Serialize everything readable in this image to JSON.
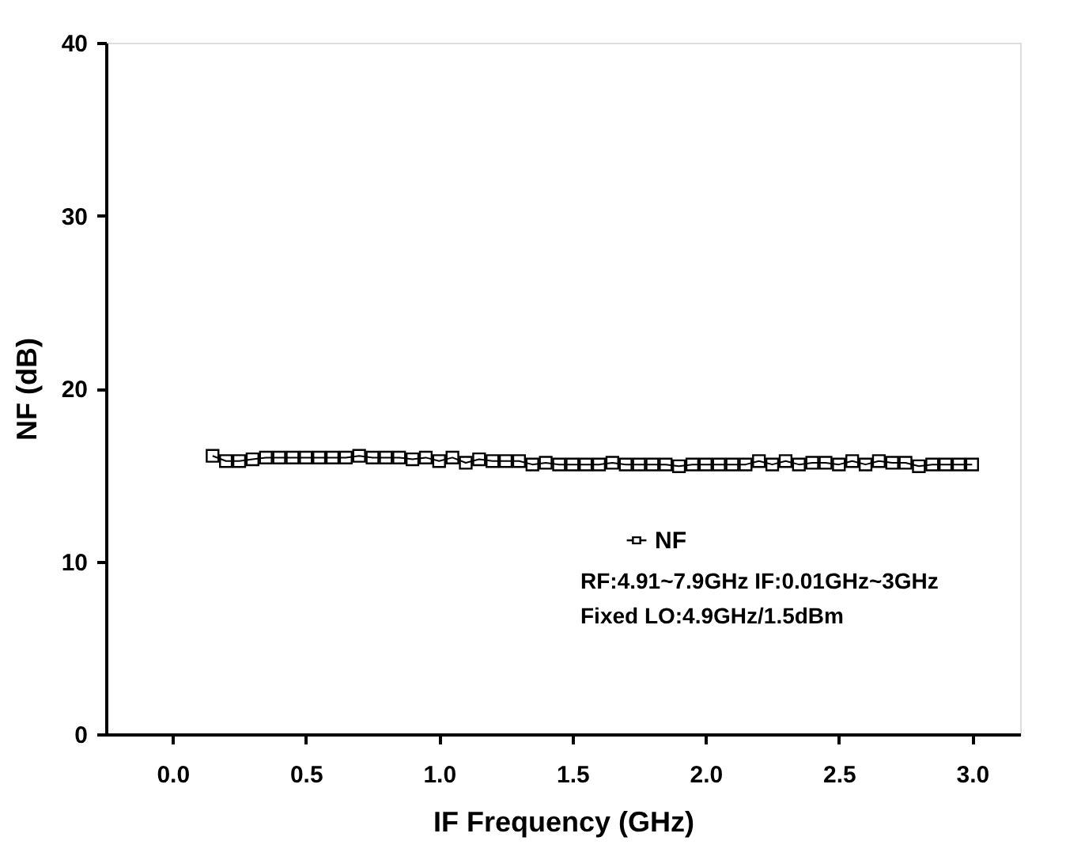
{
  "chart_data": {
    "type": "line",
    "xlabel": "IF Frequency (GHz)",
    "ylabel": "NF (dB)",
    "x": [
      0.15,
      0.2,
      0.25,
      0.3,
      0.35,
      0.4,
      0.45,
      0.5,
      0.55,
      0.6,
      0.65,
      0.7,
      0.75,
      0.8,
      0.85,
      0.9,
      0.95,
      1.0,
      1.05,
      1.1,
      1.15,
      1.2,
      1.25,
      1.3,
      1.35,
      1.4,
      1.45,
      1.5,
      1.55,
      1.6,
      1.65,
      1.7,
      1.75,
      1.8,
      1.85,
      1.9,
      1.95,
      2.0,
      2.05,
      2.1,
      2.15,
      2.2,
      2.25,
      2.3,
      2.35,
      2.4,
      2.45,
      2.5,
      2.55,
      2.6,
      2.65,
      2.7,
      2.75,
      2.8,
      2.85,
      2.9,
      2.95,
      3.0
    ],
    "series": [
      {
        "name": "NF",
        "color": "#000000",
        "values": [
          16.1,
          15.8,
          15.8,
          15.9,
          16.0,
          16.0,
          16.0,
          16.0,
          16.0,
          16.0,
          16.0,
          16.1,
          16.0,
          16.0,
          16.0,
          15.9,
          16.0,
          15.8,
          16.0,
          15.7,
          15.9,
          15.8,
          15.8,
          15.8,
          15.6,
          15.7,
          15.6,
          15.6,
          15.6,
          15.6,
          15.7,
          15.6,
          15.6,
          15.6,
          15.6,
          15.5,
          15.6,
          15.6,
          15.6,
          15.6,
          15.6,
          15.8,
          15.6,
          15.8,
          15.6,
          15.7,
          15.7,
          15.6,
          15.8,
          15.6,
          15.8,
          15.7,
          15.7,
          15.5,
          15.6,
          15.6,
          15.6,
          15.6
        ]
      }
    ],
    "annotations": [
      "RF:4.91~7.9GHz IF:0.01GHz~3GHz",
      "Fixed LO:4.9GHz/1.5dBm"
    ],
    "xlim": [
      -0.25,
      3.18
    ],
    "xticks": [
      {
        "value": 0,
        "label": "0.0"
      },
      0.5,
      {
        "value": 1,
        "label": "1.0"
      },
      1.5,
      {
        "value": 2,
        "label": "2.0"
      },
      2.5,
      {
        "value": 3,
        "label": "3.0"
      }
    ],
    "ylim": [
      0,
      40
    ],
    "yticks": [
      0,
      10,
      20,
      30,
      40
    ],
    "marker": "square",
    "line_style": "solid",
    "legend": "bottom right",
    "grid": false
  }
}
